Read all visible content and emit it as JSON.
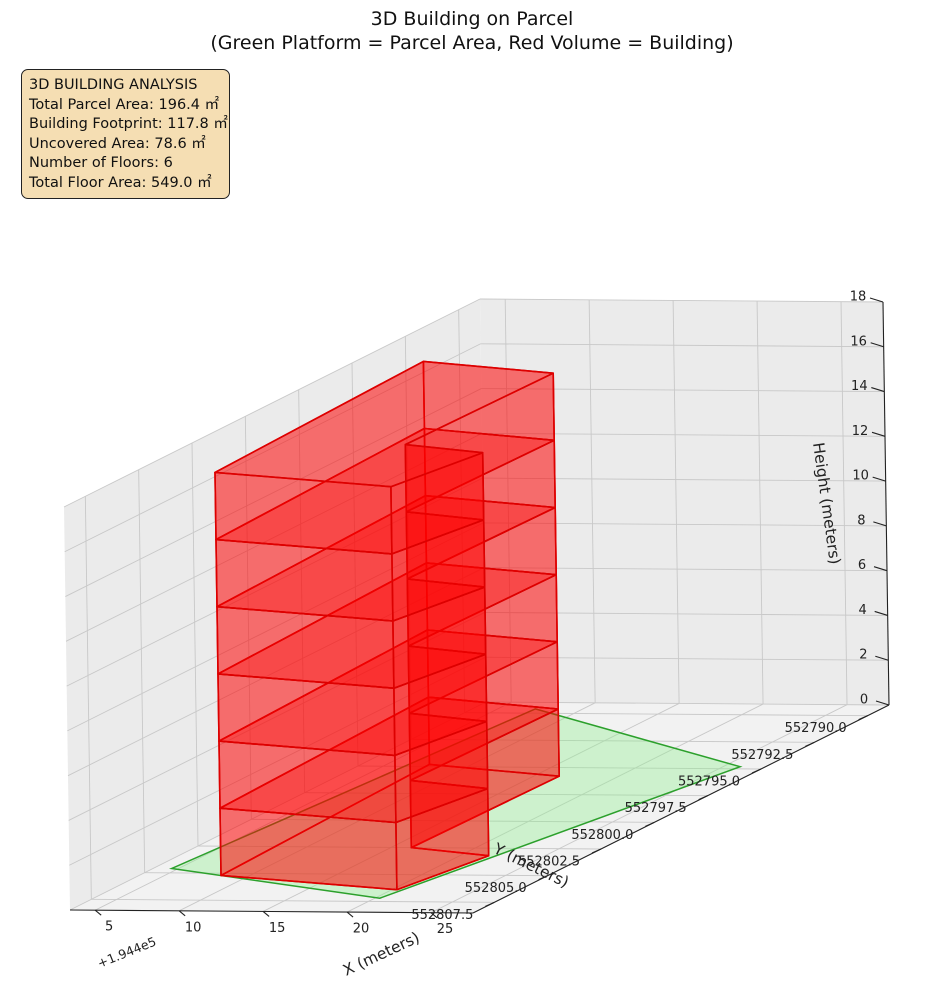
{
  "title": {
    "line1": "3D Building on Parcel",
    "line2": "(Green Platform = Parcel Area, Red Volume = Building)"
  },
  "info_box": {
    "heading": "3D BUILDING ANALYSIS",
    "lines": [
      "Total Parcel Area: 196.4 ㎡",
      "Building Footprint: 117.8 ㎡",
      "Uncovered Area: 78.6 ㎡",
      "Number of Floors: 6",
      "Total Floor Area: 549.0 ㎡"
    ]
  },
  "axes": {
    "x": {
      "label": "X (meters)",
      "ticks": [
        "5",
        "10",
        "15",
        "20",
        "25"
      ],
      "offset_text": "+1.944e5"
    },
    "y": {
      "label": "Y (meters)",
      "ticks": [
        "552790.0",
        "552792.5",
        "552795.0",
        "552797.5",
        "552800.0",
        "552802.5",
        "552805.0",
        "552807.5"
      ]
    },
    "z": {
      "label": "Height (meters)",
      "ticks": [
        "0",
        "2",
        "4",
        "6",
        "8",
        "10",
        "12",
        "14",
        "16",
        "18"
      ]
    }
  },
  "colors": {
    "parcel_fill": "#90ee90",
    "parcel_edge": "#2ca02c",
    "building_fill": "#ff0000",
    "building_edge": "#dd0000",
    "pane": "#f2f2f2",
    "grid": "#c8c8c8"
  },
  "chart_data": {
    "type": "3d-polygons",
    "xlim": [
      3.5,
      27.5
    ],
    "ylim": [
      552789.0,
      552808.5
    ],
    "zlim": [
      0,
      18
    ],
    "x_offset": 194400,
    "parcel": {
      "name": "Parcel Area",
      "area_m2": 196.4,
      "z": 0,
      "vertices": [
        [
          7.2,
          552789.6
        ],
        [
          26.0,
          552794.8
        ],
        [
          20.3,
          552807.2
        ],
        [
          4.6,
          552804.6
        ]
      ]
    },
    "building": {
      "name": "Building",
      "footprint_m2": 117.8,
      "floors": 6,
      "floor_height": 3.0,
      "total_floor_area_m2": 549.0,
      "footprint": [
        [
          7.5,
          552794.8
        ],
        [
          16.5,
          552795.8
        ],
        [
          16.2,
          552802.5
        ],
        [
          21.7,
          552803.2
        ],
        [
          20.3,
          552806.4
        ],
        [
          8.3,
          552805.2
        ]
      ]
    }
  }
}
